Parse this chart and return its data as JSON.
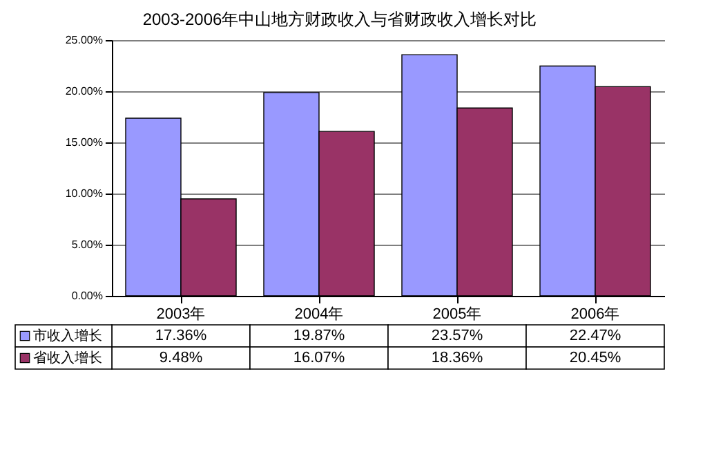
{
  "chart_data": {
    "type": "bar",
    "title": "2003-2006年中山地方财政收入与省财政收入增长对比",
    "categories": [
      "2003年",
      "2004年",
      "2005年",
      "2006年"
    ],
    "series": [
      {
        "name": "市收入增长",
        "color": "#9999ff",
        "values": [
          17.36,
          19.87,
          23.57,
          22.47
        ],
        "value_labels": [
          "17.36%",
          "19.87%",
          "23.57%",
          "22.47%"
        ]
      },
      {
        "name": "省收入增长",
        "color": "#993366",
        "values": [
          9.48,
          16.07,
          18.36,
          20.45
        ],
        "value_labels": [
          "9.48%",
          "16.07%",
          "18.36%",
          "20.45%"
        ]
      }
    ],
    "ylim": [
      0,
      25
    ],
    "yticks": [
      {
        "value": 0,
        "label": "0.00%"
      },
      {
        "value": 5,
        "label": "5.00%"
      },
      {
        "value": 10,
        "label": "10.00%"
      },
      {
        "value": 15,
        "label": "15.00%"
      },
      {
        "value": 20,
        "label": "20.00%"
      },
      {
        "value": 25,
        "label": "25.00%"
      }
    ],
    "grid": "y",
    "legend": "bottom left"
  }
}
